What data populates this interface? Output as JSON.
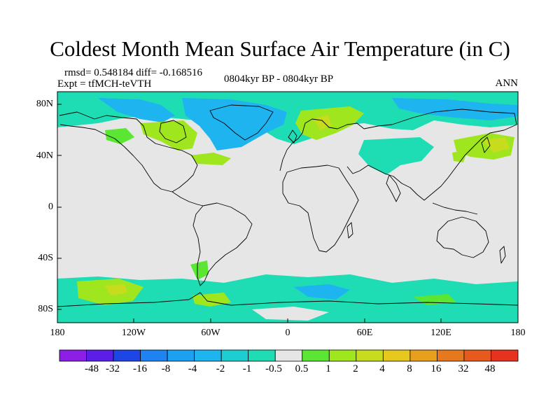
{
  "title": "Coldest Month Mean Surface Air Temperature (in C)",
  "stats_text": "rmsd= 0.548184  diff= -0.168516",
  "experiment_text": "Expt = tfMCH-teVTH",
  "period_text": "0804kyr BP - 0804kyr BP",
  "season_text": "ANN",
  "lat_labels": [
    "80N",
    "40N",
    "0",
    "40S",
    "80S"
  ],
  "lon_labels": [
    "180",
    "120W",
    "60W",
    "0",
    "60E",
    "120E",
    "180"
  ],
  "colorbar": {
    "labels": [
      "-48",
      "-32",
      "-16",
      "-8",
      "-4",
      "-2",
      "-1",
      "-0.5",
      "0.5",
      "1",
      "2",
      "4",
      "8",
      "16",
      "32",
      "48"
    ],
    "colors": [
      "#8c1ee6",
      "#5a1ee6",
      "#1e46e6",
      "#1e82f0",
      "#1ea0f0",
      "#1eb4f0",
      "#1ecdd2",
      "#1edcb4",
      "#e6e6e6",
      "#5ae632",
      "#a0e61e",
      "#c8dc1e",
      "#e6c81e",
      "#e6a01e",
      "#e6781e",
      "#e65a1e",
      "#e6321e"
    ]
  }
}
